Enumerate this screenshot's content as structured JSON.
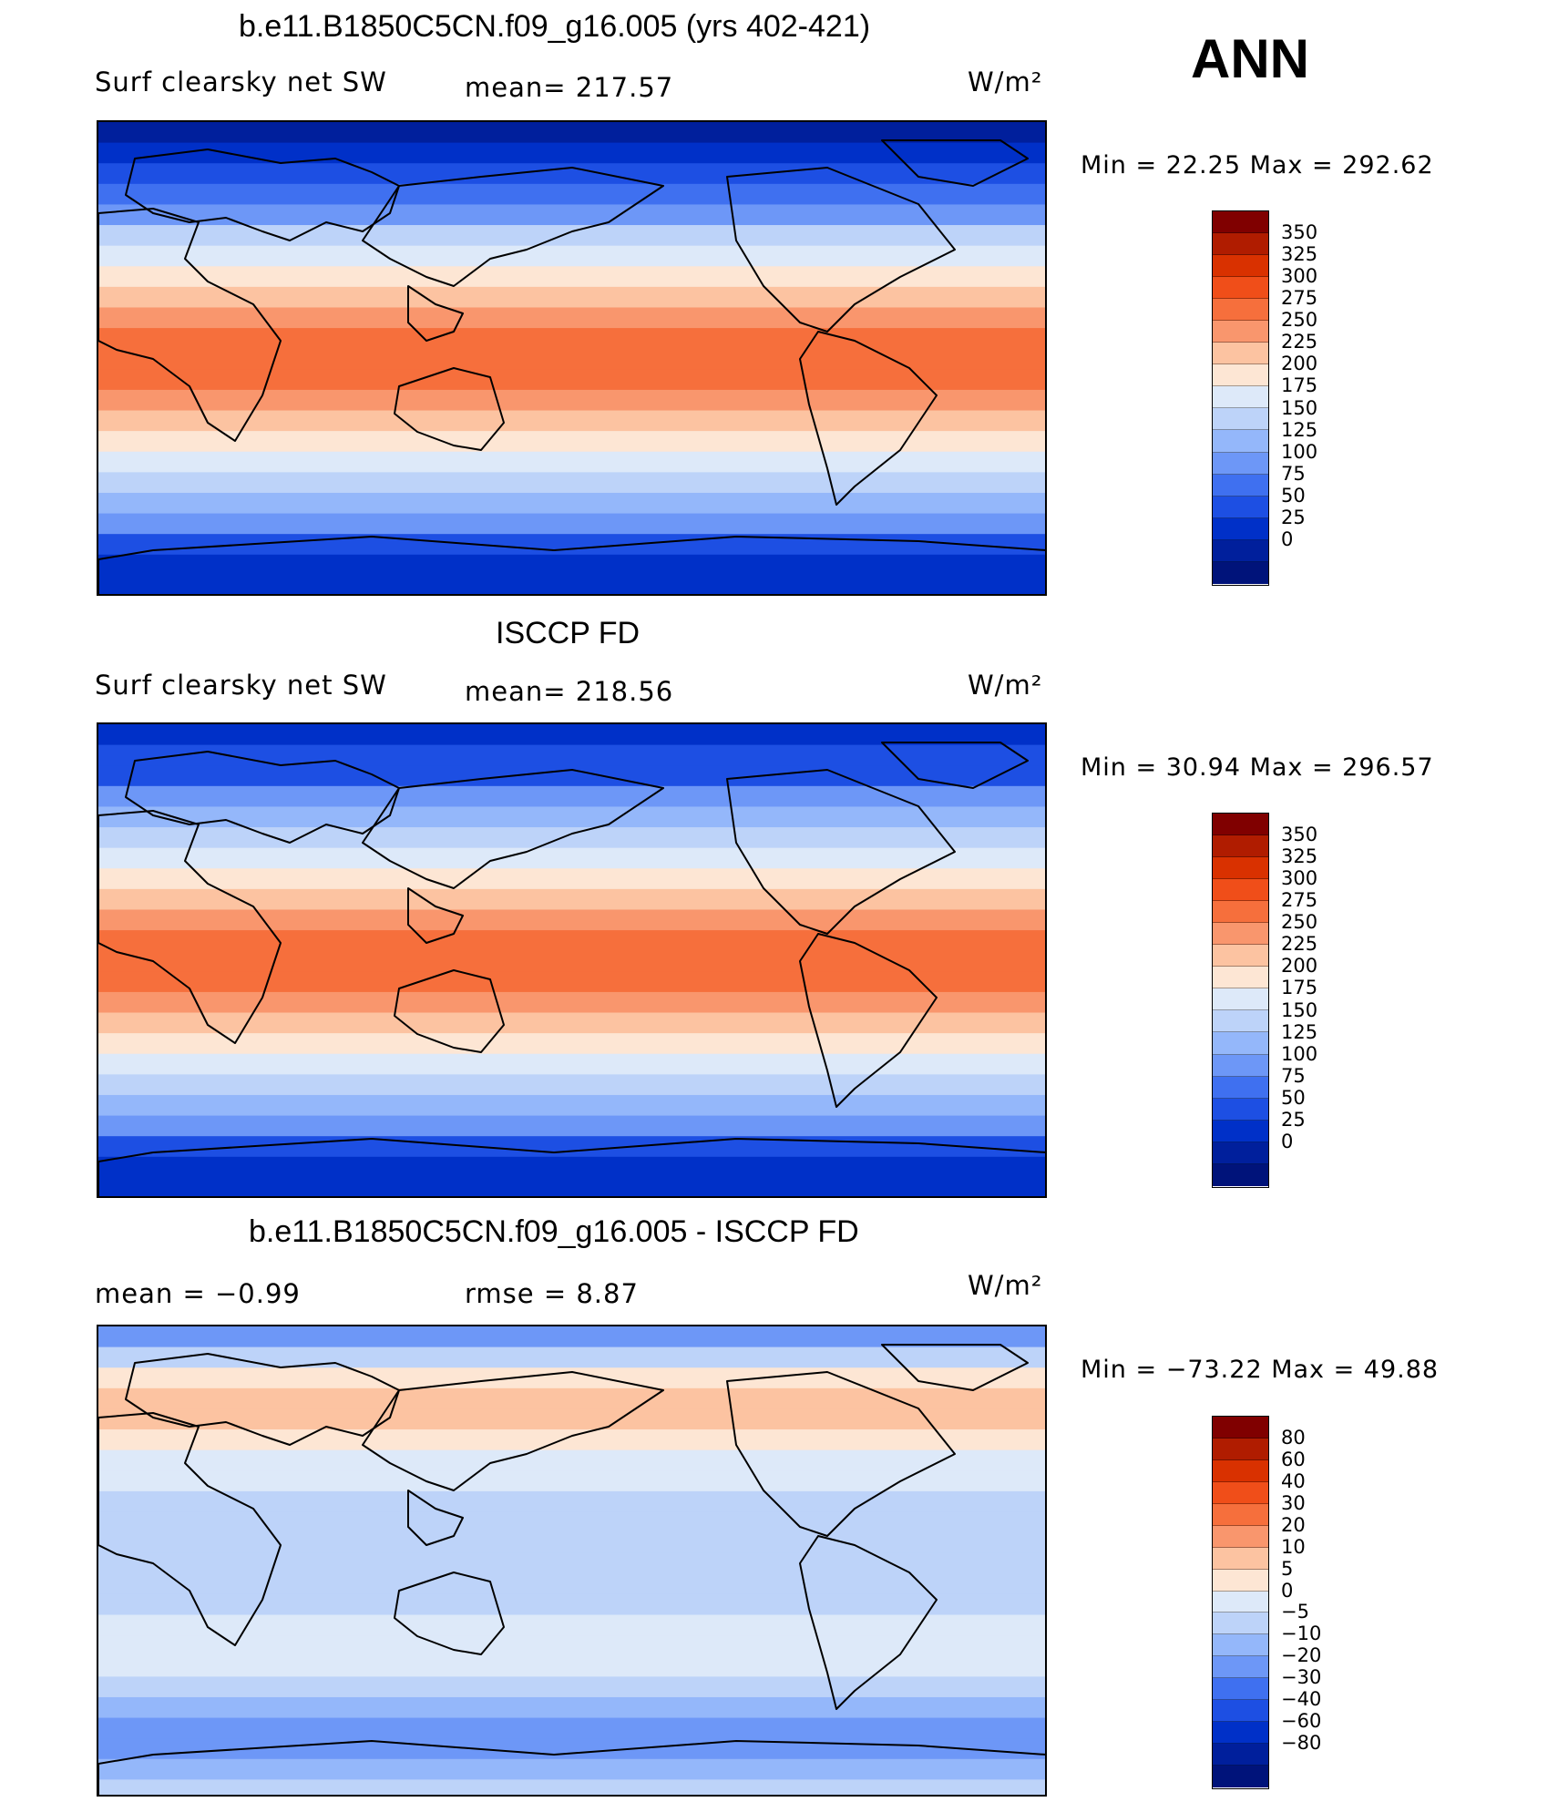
{
  "season": "ANN",
  "panels": [
    {
      "title": "b.e11.B1850C5CN.f09_g16.005 (yrs 402-421)",
      "variable": "Surf clearsky net SW",
      "left_label": "",
      "mean_text": "mean=  217.57",
      "units": "W/m²",
      "minmax": "Min  =    22.25  Max  =  292.62",
      "colorbar_labels": [
        "350",
        "325",
        "300",
        "275",
        "250",
        "225",
        "200",
        "175",
        "150",
        "125",
        "100",
        "75",
        "50",
        "25",
        "0"
      ],
      "colorbar_colors": [
        "#800000",
        "#b01c00",
        "#d93100",
        "#f04e19",
        "#f66f3c",
        "#f9966d",
        "#fcc3a1",
        "#fde6d4",
        "#dde9f9",
        "#bdd3f9",
        "#94b7fa",
        "#6d97f7",
        "#3f70f0",
        "#1d4fe3",
        "#0030c8",
        "#001f9c",
        "#00137a"
      ]
    },
    {
      "title": "ISCCP FD",
      "variable": "Surf clearsky net SW",
      "left_label": "",
      "mean_text": "mean=  218.56",
      "units": "W/m²",
      "minmax": "Min  =    30.94  Max  =  296.57",
      "colorbar_labels": [
        "350",
        "325",
        "300",
        "275",
        "250",
        "225",
        "200",
        "175",
        "150",
        "125",
        "100",
        "75",
        "50",
        "25",
        "0"
      ],
      "colorbar_colors": [
        "#800000",
        "#b01c00",
        "#d93100",
        "#f04e19",
        "#f66f3c",
        "#f9966d",
        "#fcc3a1",
        "#fde6d4",
        "#dde9f9",
        "#bdd3f9",
        "#94b7fa",
        "#6d97f7",
        "#3f70f0",
        "#1d4fe3",
        "#0030c8",
        "#001f9c",
        "#00137a"
      ]
    },
    {
      "title": "b.e11.B1850C5CN.f09_g16.005 - ISCCP FD",
      "variable": "",
      "left_label": "mean  =    −0.99",
      "mean_text": "rmse  =     8.87",
      "units": "W/m²",
      "minmax": "Min  = −73.22  Max  =    49.88",
      "colorbar_labels": [
        "80",
        "60",
        "40",
        "30",
        "20",
        "10",
        "5",
        "0",
        "−5",
        "−10",
        "−20",
        "−30",
        "−40",
        "−60",
        "−80"
      ],
      "colorbar_colors": [
        "#800000",
        "#b01c00",
        "#d93100",
        "#f04e19",
        "#f66f3c",
        "#f9966d",
        "#fcc3a1",
        "#fde6d4",
        "#dde9f9",
        "#bdd3f9",
        "#94b7fa",
        "#6d97f7",
        "#3f70f0",
        "#1d4fe3",
        "#0030c8",
        "#001f9c",
        "#00137a"
      ]
    }
  ],
  "chart_data": [
    {
      "type": "heatmap",
      "title": "b.e11.B1850C5CN.f09_g16.005 (yrs 402-421)",
      "variable": "Surf clearsky net SW",
      "units": "W/m²",
      "mean": 217.57,
      "min": 22.25,
      "max": 292.62,
      "contour_levels": [
        0,
        25,
        50,
        75,
        100,
        125,
        150,
        175,
        200,
        225,
        250,
        275,
        300,
        325,
        350
      ],
      "zonal_band_values": [
        20,
        40,
        60,
        90,
        120,
        160,
        190,
        215,
        240,
        265,
        285,
        290,
        285,
        270,
        245,
        220,
        195,
        170,
        140,
        100,
        60,
        35,
        25
      ]
    },
    {
      "type": "heatmap",
      "title": "ISCCP FD",
      "variable": "Surf clearsky net SW",
      "units": "W/m²",
      "mean": 218.56,
      "min": 30.94,
      "max": 296.57,
      "contour_levels": [
        0,
        25,
        50,
        75,
        100,
        125,
        150,
        175,
        200,
        225,
        250,
        275,
        300,
        325,
        350
      ],
      "zonal_band_values": [
        35,
        50,
        70,
        100,
        130,
        165,
        195,
        220,
        245,
        270,
        288,
        295,
        288,
        272,
        248,
        222,
        198,
        172,
        142,
        105,
        65,
        40,
        32
      ]
    },
    {
      "type": "heatmap",
      "title": "b.e11.B1850C5CN.f09_g16.005 - ISCCP FD",
      "units": "W/m²",
      "mean": -0.99,
      "rmse": 8.87,
      "min": -73.22,
      "max": 49.88,
      "contour_levels": [
        -80,
        -60,
        -40,
        -30,
        -20,
        -10,
        -5,
        0,
        5,
        10,
        20,
        30,
        40,
        60,
        80
      ],
      "zonal_band_values": [
        -20,
        -5,
        8,
        12,
        10,
        6,
        3,
        2,
        -2,
        -4,
        -3,
        -4,
        -3,
        -2,
        2,
        3,
        1,
        -3,
        -6,
        -12,
        -15,
        -8,
        -4
      ]
    }
  ]
}
